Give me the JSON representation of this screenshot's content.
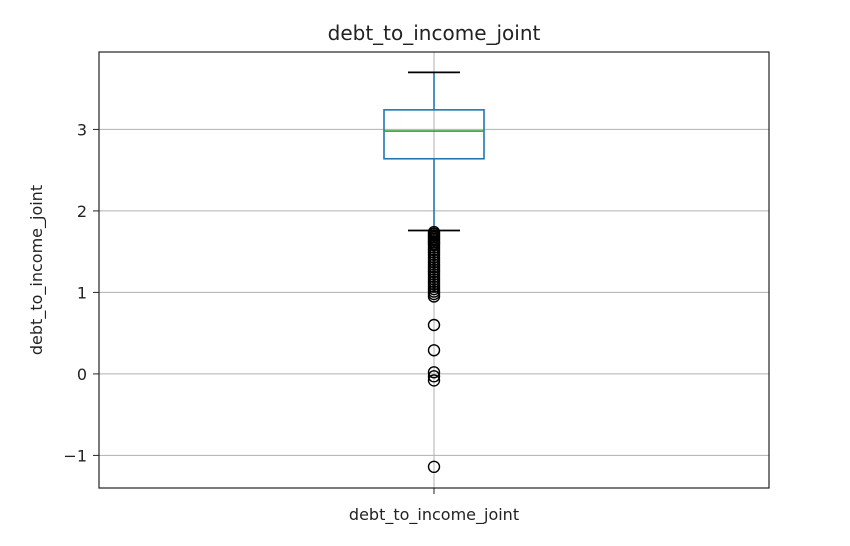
{
  "chart_data": {
    "type": "box",
    "title": "debt_to_income_joint",
    "xlabel": "",
    "ylabel": "debt_to_income_joint",
    "categories": [
      "debt_to_income_joint"
    ],
    "ylim": [
      -1.4,
      3.95
    ],
    "yticks": [
      -1,
      0,
      1,
      2,
      3
    ],
    "ytick_labels": [
      "−1",
      "0",
      "1",
      "2",
      "3"
    ],
    "grid": true,
    "colors": {
      "box": "#1f77b4",
      "median": "#2ca02c",
      "whisker": "#1f77b4",
      "cap": "#000000",
      "flier": "#000000",
      "grid": "#b0b0b0"
    },
    "series": [
      {
        "whisker_low": 1.76,
        "q1": 2.64,
        "median": 2.98,
        "q3": 3.24,
        "whisker_high": 3.7,
        "outliers": [
          1.74,
          1.72,
          1.7,
          1.68,
          1.66,
          1.64,
          1.62,
          1.6,
          1.58,
          1.55,
          1.52,
          1.49,
          1.46,
          1.43,
          1.4,
          1.37,
          1.34,
          1.31,
          1.28,
          1.25,
          1.22,
          1.19,
          1.16,
          1.13,
          1.1,
          1.07,
          1.04,
          1.01,
          0.98,
          0.95,
          0.6,
          0.29,
          0.02,
          -0.03,
          -0.08,
          -1.14
        ]
      }
    ]
  }
}
